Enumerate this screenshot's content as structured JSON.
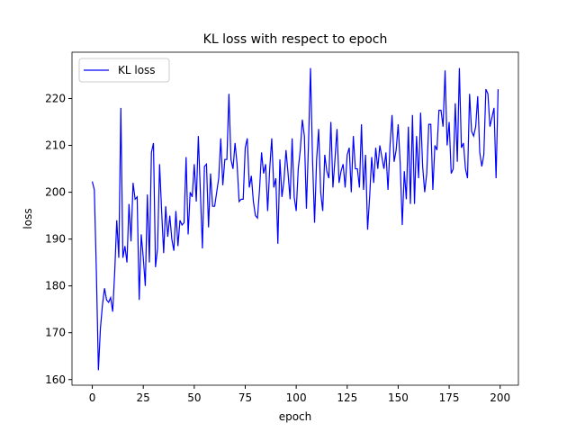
{
  "chart_data": {
    "type": "line",
    "title": "KL loss with respect to epoch",
    "x_label": "epoch",
    "y_label": "loss",
    "series": [
      {
        "name": "KL loss",
        "color": "#0000ff",
        "values": [
          202.3,
          200.5,
          183,
          162,
          171,
          176,
          179.5,
          177,
          176.5,
          177.5,
          174.5,
          183,
          194,
          186,
          218,
          186,
          188.5,
          185,
          197.5,
          189.5,
          202,
          198.5,
          199,
          177,
          191,
          186,
          180,
          199.5,
          185,
          208.5,
          210.5,
          184,
          188,
          206,
          196,
          187,
          197,
          190.5,
          195,
          190,
          187.5,
          196,
          188.5,
          194,
          193,
          193.5,
          207.5,
          191,
          200,
          199,
          206,
          198,
          212,
          200,
          188,
          205.5,
          206,
          192.5,
          204,
          197,
          197,
          200,
          203,
          211.5,
          201.5,
          207,
          207,
          221,
          207,
          205,
          210.5,
          206,
          198,
          198.5,
          198.5,
          209.5,
          211.5,
          201,
          203.5,
          198,
          195,
          194.5,
          200.5,
          208.5,
          204,
          206,
          196,
          205,
          211.5,
          201,
          203,
          189,
          207,
          199,
          202.5,
          209,
          204,
          198.5,
          211.5,
          199,
          196,
          205,
          209,
          215.5,
          212,
          196.5,
          210,
          226.5,
          207,
          193.5,
          207,
          213.5,
          200,
          196,
          208,
          204.5,
          203,
          215,
          201,
          207,
          213.5,
          202,
          204.5,
          206,
          201,
          208,
          209.5,
          200,
          212,
          205,
          205,
          201,
          214.5,
          200.5,
          208,
          192,
          199,
          207.5,
          202,
          209.5,
          205,
          210,
          207.5,
          205,
          208.5,
          200.5,
          210,
          216.5,
          206.5,
          209,
          214.5,
          206,
          193,
          204.5,
          198.5,
          214,
          197.5,
          216.5,
          197.5,
          212,
          203,
          217,
          205.5,
          200,
          204,
          214.5,
          214.5,
          200.5,
          210,
          209,
          217.5,
          217.5,
          214,
          226,
          210,
          215,
          204,
          205,
          219,
          206.5,
          226.5,
          209.5,
          210.5,
          205,
          203,
          221,
          213,
          212,
          214,
          220.5,
          208.5,
          205.5,
          208,
          222,
          221,
          214,
          216,
          218,
          203,
          222
        ]
      }
    ],
    "xlim": [
      -9.95,
      208.95
    ],
    "ylim": [
      158.8,
      229.9
    ],
    "xticks": [
      0,
      25,
      50,
      75,
      100,
      125,
      150,
      175,
      200
    ],
    "yticks": [
      160,
      170,
      180,
      190,
      200,
      210,
      220
    ],
    "legend": "upper left"
  }
}
